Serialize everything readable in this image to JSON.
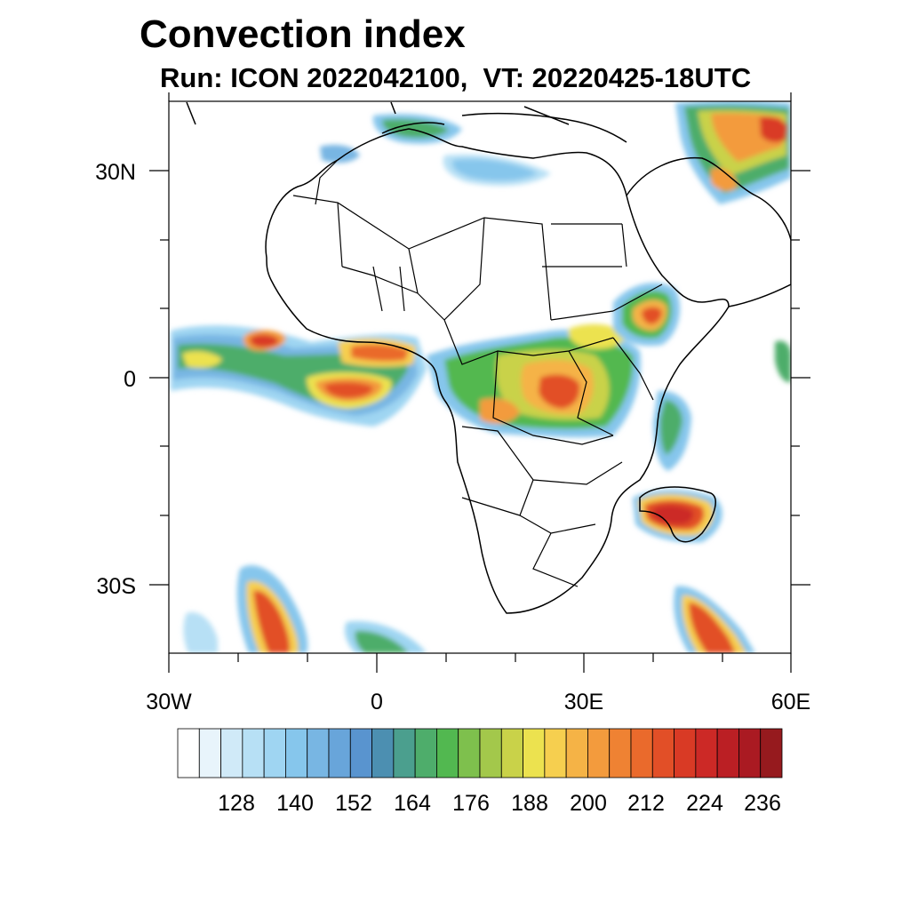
{
  "title": "Convection index",
  "subtitle": "Run: ICON 2022042100,  VT: 20220425-18UTC",
  "map": {
    "projection": "cylindrical equidistant",
    "lon_range": [
      -30,
      60
    ],
    "lat_range": [
      -40,
      40
    ],
    "lon_ticks": [
      "30W",
      "0",
      "30E",
      "60E"
    ],
    "lat_ticks": [
      "30N",
      "0",
      "30S"
    ]
  },
  "colorbar": {
    "labels": [
      "128",
      "140",
      "152",
      "164",
      "176",
      "188",
      "200",
      "212",
      "224",
      "236"
    ],
    "colors": [
      "#ffffff",
      "#e8f4fb",
      "#d0eaf8",
      "#b7e0f5",
      "#9fd5f2",
      "#86c6ec",
      "#78b6e3",
      "#68a5da",
      "#5994cf",
      "#4c8fb1",
      "#4b9f8e",
      "#4ead6b",
      "#52b850",
      "#7ec04d",
      "#a3c84b",
      "#c9d249",
      "#ece24f",
      "#f6cf4f",
      "#f5b346",
      "#f39b3d",
      "#ef8233",
      "#ea6a2c",
      "#e24f27",
      "#d93a25",
      "#cc2926",
      "#bb1f24",
      "#aa1a22",
      "#961a1e"
    ]
  },
  "convection_areas": [
    {
      "name": "Gulf of Guinea / W Atlantic band",
      "intensity": "high"
    },
    {
      "name": "Central Africa / Congo basin",
      "intensity": "high"
    },
    {
      "name": "Ethiopian highlands",
      "intensity": "high"
    },
    {
      "name": "Madagascar",
      "intensity": "very high"
    },
    {
      "name": "Arabian Peninsula / Middle East",
      "intensity": "high"
    },
    {
      "name": "Mediterranean / North Africa",
      "intensity": "moderate"
    },
    {
      "name": "South Atlantic frontal band",
      "intensity": "high"
    },
    {
      "name": "South Indian Ocean frontal band",
      "intensity": "high"
    }
  ]
}
